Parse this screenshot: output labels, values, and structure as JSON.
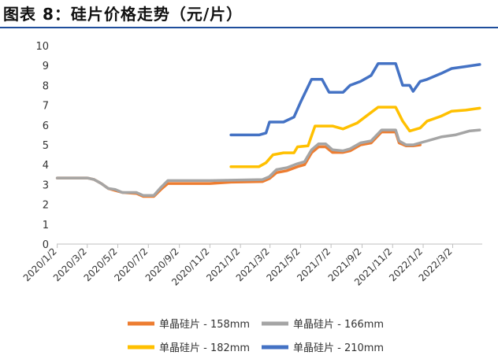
{
  "title": "图表 8：硅片价格走势（元/片）",
  "colors": {
    "accent": "#1f4e9c"
  },
  "chart_data": {
    "type": "line",
    "title": "图表 8：硅片价格走势（元/片）",
    "xlabel": "",
    "ylabel": "",
    "ylim": [
      0,
      10
    ],
    "yticks": [
      0,
      1,
      2,
      3,
      4,
      5,
      6,
      7,
      8,
      9,
      10
    ],
    "xlim": [
      "2020-01-01",
      "2022-04-30"
    ],
    "xticks": [
      "2020/1/2",
      "2020/3/2",
      "2020/5/2",
      "2020/7/2",
      "2020/9/2",
      "2020/11/2",
      "2021/1/2",
      "2021/3/2",
      "2021/5/2",
      "2021/7/2",
      "2021/9/2",
      "2021/11/2",
      "2022/1/2",
      "2022/3/2"
    ],
    "grid": false,
    "legend_position": "bottom",
    "series": [
      {
        "name": "单晶硅片 - 158mm",
        "color": "#ed7d31",
        "points": [
          [
            "2020-01-02",
            3.33
          ],
          [
            "2020-03-02",
            3.33
          ],
          [
            "2020-03-16",
            3.25
          ],
          [
            "2020-03-30",
            3.05
          ],
          [
            "2020-04-13",
            2.8
          ],
          [
            "2020-04-27",
            2.7
          ],
          [
            "2020-05-11",
            2.6
          ],
          [
            "2020-06-08",
            2.55
          ],
          [
            "2020-06-22",
            2.4
          ],
          [
            "2020-07-13",
            2.4
          ],
          [
            "2020-07-27",
            2.75
          ],
          [
            "2020-08-10",
            3.05
          ],
          [
            "2020-11-02",
            3.05
          ],
          [
            "2020-12-14",
            3.12
          ],
          [
            "2021-02-15",
            3.15
          ],
          [
            "2021-03-01",
            3.3
          ],
          [
            "2021-03-15",
            3.6
          ],
          [
            "2021-04-05",
            3.7
          ],
          [
            "2021-04-26",
            3.9
          ],
          [
            "2021-05-10",
            4.0
          ],
          [
            "2021-05-24",
            4.6
          ],
          [
            "2021-06-07",
            4.9
          ],
          [
            "2021-06-21",
            4.9
          ],
          [
            "2021-07-05",
            4.62
          ],
          [
            "2021-07-26",
            4.62
          ],
          [
            "2021-08-09",
            4.7
          ],
          [
            "2021-08-30",
            5.0
          ],
          [
            "2021-09-20",
            5.1
          ],
          [
            "2021-10-11",
            5.65
          ],
          [
            "2021-11-08",
            5.65
          ],
          [
            "2021-11-15",
            5.1
          ],
          [
            "2021-11-29",
            4.95
          ],
          [
            "2021-12-13",
            4.95
          ],
          [
            "2021-12-27",
            5.0
          ]
        ]
      },
      {
        "name": "单晶硅片 - 166mm",
        "color": "#a5a5a5",
        "points": [
          [
            "2020-01-02",
            3.33
          ],
          [
            "2020-03-02",
            3.33
          ],
          [
            "2020-03-16",
            3.25
          ],
          [
            "2020-03-30",
            3.05
          ],
          [
            "2020-04-13",
            2.8
          ],
          [
            "2020-04-27",
            2.75
          ],
          [
            "2020-05-11",
            2.6
          ],
          [
            "2020-06-08",
            2.6
          ],
          [
            "2020-06-22",
            2.45
          ],
          [
            "2020-07-13",
            2.45
          ],
          [
            "2020-07-27",
            2.85
          ],
          [
            "2020-08-10",
            3.2
          ],
          [
            "2020-11-02",
            3.2
          ],
          [
            "2020-12-14",
            3.22
          ],
          [
            "2021-02-15",
            3.25
          ],
          [
            "2021-03-01",
            3.4
          ],
          [
            "2021-03-15",
            3.75
          ],
          [
            "2021-04-05",
            3.85
          ],
          [
            "2021-04-26",
            4.05
          ],
          [
            "2021-05-10",
            4.15
          ],
          [
            "2021-05-24",
            4.75
          ],
          [
            "2021-06-07",
            5.05
          ],
          [
            "2021-06-21",
            5.05
          ],
          [
            "2021-07-05",
            4.75
          ],
          [
            "2021-07-26",
            4.7
          ],
          [
            "2021-08-09",
            4.8
          ],
          [
            "2021-08-30",
            5.1
          ],
          [
            "2021-09-20",
            5.2
          ],
          [
            "2021-10-11",
            5.75
          ],
          [
            "2021-11-08",
            5.75
          ],
          [
            "2021-11-15",
            5.2
          ],
          [
            "2021-11-29",
            5.0
          ],
          [
            "2021-12-13",
            5.0
          ],
          [
            "2022-01-10",
            5.2
          ],
          [
            "2022-02-07",
            5.4
          ],
          [
            "2022-03-07",
            5.5
          ],
          [
            "2022-04-04",
            5.7
          ],
          [
            "2022-04-25",
            5.75
          ]
        ]
      },
      {
        "name": "单晶硅片 - 182mm",
        "color": "#ffc000",
        "points": [
          [
            "2020-12-14",
            3.9
          ],
          [
            "2021-02-08",
            3.9
          ],
          [
            "2021-02-22",
            4.1
          ],
          [
            "2021-03-08",
            4.5
          ],
          [
            "2021-03-29",
            4.6
          ],
          [
            "2021-04-19",
            4.6
          ],
          [
            "2021-04-26",
            4.9
          ],
          [
            "2021-05-17",
            4.95
          ],
          [
            "2021-05-31",
            5.95
          ],
          [
            "2021-07-05",
            5.95
          ],
          [
            "2021-07-26",
            5.8
          ],
          [
            "2021-08-23",
            6.1
          ],
          [
            "2021-09-13",
            6.5
          ],
          [
            "2021-10-04",
            6.9
          ],
          [
            "2021-11-08",
            6.9
          ],
          [
            "2021-11-22",
            6.2
          ],
          [
            "2021-12-06",
            5.7
          ],
          [
            "2021-12-27",
            5.85
          ],
          [
            "2022-01-10",
            6.2
          ],
          [
            "2022-02-07",
            6.45
          ],
          [
            "2022-02-28",
            6.7
          ],
          [
            "2022-03-28",
            6.75
          ],
          [
            "2022-04-25",
            6.85
          ]
        ]
      },
      {
        "name": "单晶硅片 - 210mm",
        "color": "#4472c4",
        "points": [
          [
            "2020-12-14",
            5.5
          ],
          [
            "2021-02-08",
            5.5
          ],
          [
            "2021-02-22",
            5.6
          ],
          [
            "2021-03-01",
            6.15
          ],
          [
            "2021-03-29",
            6.15
          ],
          [
            "2021-04-19",
            6.4
          ],
          [
            "2021-05-03",
            7.2
          ],
          [
            "2021-05-24",
            8.3
          ],
          [
            "2021-06-14",
            8.3
          ],
          [
            "2021-06-28",
            7.65
          ],
          [
            "2021-07-26",
            7.65
          ],
          [
            "2021-08-09",
            8.0
          ],
          [
            "2021-08-30",
            8.2
          ],
          [
            "2021-09-20",
            8.5
          ],
          [
            "2021-10-04",
            9.1
          ],
          [
            "2021-11-08",
            9.1
          ],
          [
            "2021-11-22",
            8.0
          ],
          [
            "2021-12-06",
            8.0
          ],
          [
            "2021-12-13",
            7.7
          ],
          [
            "2021-12-27",
            8.2
          ],
          [
            "2022-01-10",
            8.3
          ],
          [
            "2022-02-07",
            8.6
          ],
          [
            "2022-02-28",
            8.85
          ],
          [
            "2022-03-28",
            8.95
          ],
          [
            "2022-04-25",
            9.05
          ]
        ]
      }
    ]
  }
}
